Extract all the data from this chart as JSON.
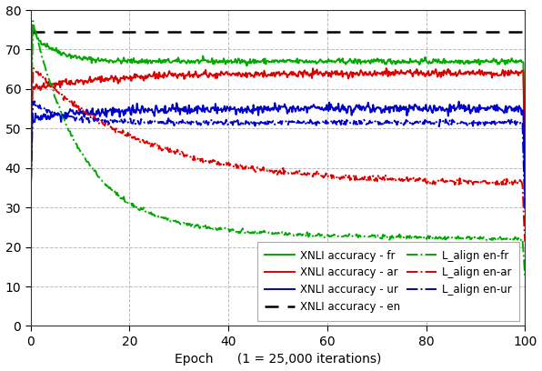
{
  "xlim": [
    0,
    100
  ],
  "ylim": [
    0,
    80
  ],
  "xlabel": "Epoch      (1 = 25,000 iterations)",
  "yticks": [
    0,
    10,
    20,
    30,
    40,
    50,
    60,
    70,
    80
  ],
  "xticks": [
    0,
    20,
    40,
    60,
    80,
    100
  ],
  "en_accuracy": 74.5,
  "background_color": "#ffffff",
  "grid_color": "#bbbbbb",
  "colors": {
    "green": "#00aa00",
    "red": "#dd0000",
    "blue": "#0000cc",
    "black": "#000000"
  }
}
